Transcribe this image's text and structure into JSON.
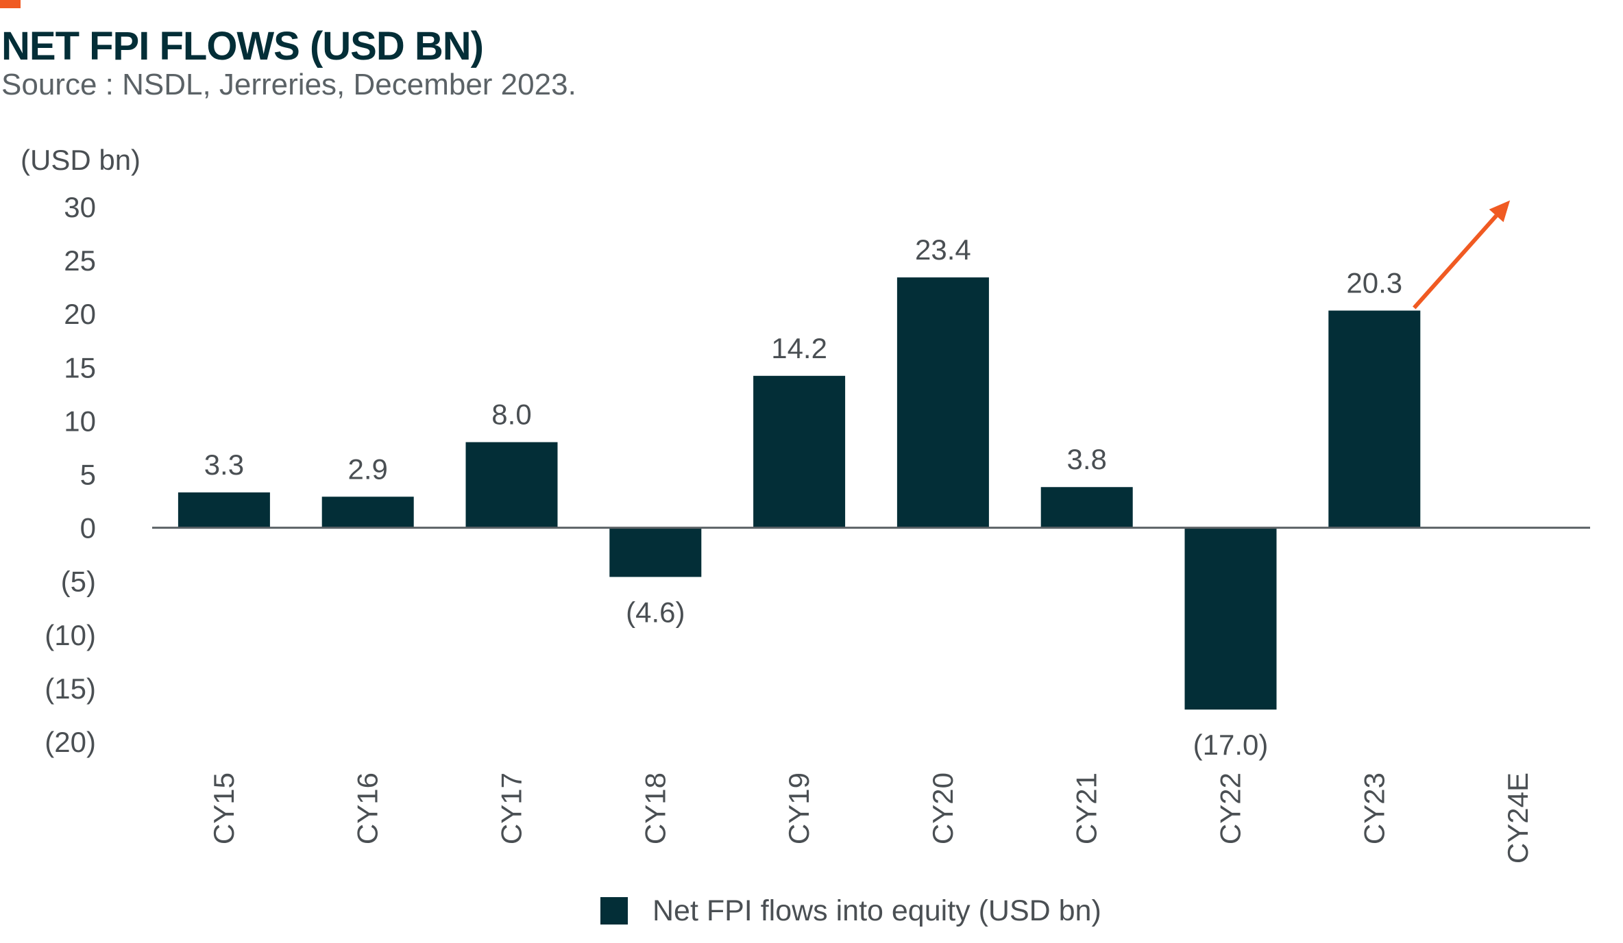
{
  "header": {
    "title": "NET FPI FLOWS (USD BN)",
    "subtitle": "Source : NSDL, Jerreries, December 2023."
  },
  "colors": {
    "bar": "#032e37",
    "accent": "#f05a22",
    "text": "#4a4f53",
    "axis": "#5b6266"
  },
  "legend": {
    "label": "Net FPI flows into equity (USD bn)"
  },
  "chart_data": {
    "type": "bar",
    "ylabel": "(USD bn)",
    "ylim": [
      -20,
      30
    ],
    "yticks": [
      30,
      25,
      20,
      15,
      10,
      5,
      0,
      -5,
      -10,
      -15,
      -20
    ],
    "ytick_labels": [
      "30",
      "25",
      "20",
      "15",
      "10",
      "5",
      "0",
      "(5)",
      "(10)",
      "(15)",
      "(20)"
    ],
    "categories": [
      "CY15",
      "CY16",
      "CY17",
      "CY18",
      "CY19",
      "CY20",
      "CY21",
      "CY22",
      "CY23",
      "CY24E"
    ],
    "series": [
      {
        "name": "Net FPI flows into equity (USD bn)",
        "values": [
          3.3,
          2.9,
          8.0,
          -4.6,
          14.2,
          23.4,
          3.8,
          -17.0,
          20.3,
          null
        ],
        "labels": [
          "3.3",
          "2.9",
          "8.0",
          "(4.6)",
          "14.2",
          "23.4",
          "3.8",
          "(17.0)",
          "20.3",
          ""
        ]
      }
    ],
    "annotations": [
      {
        "type": "arrow",
        "description": "upward trend arrow after CY23",
        "color": "#f05a22"
      }
    ],
    "grid": false,
    "legend_position": "bottom-center"
  }
}
